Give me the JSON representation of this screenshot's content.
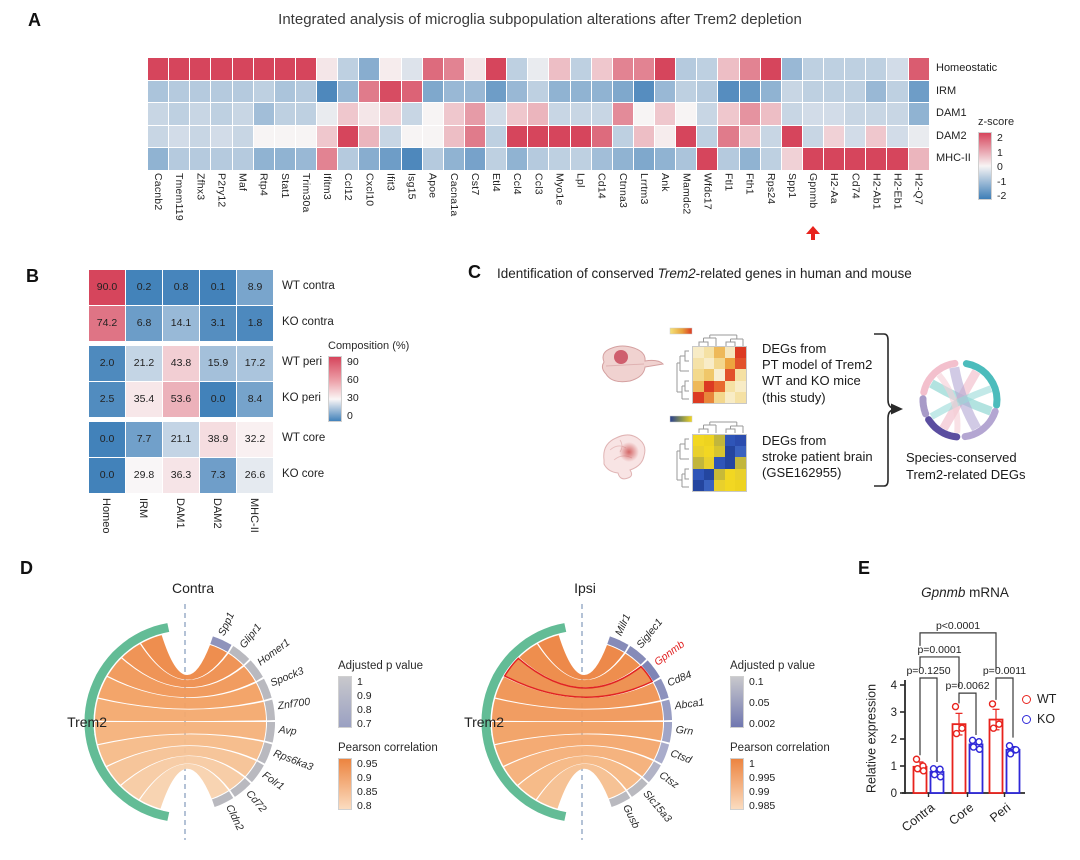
{
  "panelA": {
    "label": "A",
    "title": "Integrated analysis of microglia subpopulation alterations after Trem2 depletion",
    "legend": {
      "title": "z-score",
      "ticks": [
        "2",
        "1",
        "0",
        "-1",
        "-2"
      ]
    },
    "highlight_gene": "Gpnmb"
  },
  "panelB": {
    "label": "B",
    "legend": {
      "title": "Composition (%)",
      "ticks": [
        "90",
        "60",
        "30",
        "0"
      ]
    }
  },
  "panelC": {
    "label": "C",
    "title_pre": "Identification of conserved ",
    "title_italic": "Trem2",
    "title_post": "-related genes in human and mouse",
    "mouse_lines": [
      "DEGs from",
      "PT model of Trem2",
      "WT and KO mice",
      "(this study)"
    ],
    "human_lines": [
      "DEGs from",
      "stroke patient brain",
      "(GSE162955)"
    ],
    "result_lines": [
      "Species-conserved",
      "Trem2-related DEGs"
    ],
    "mouse_heatmap": [
      [
        "#f8ecc6",
        "#f5e1a4",
        "#eeb95a",
        "#f6e7bd",
        "#dc3a22"
      ],
      [
        "#f5e2a8",
        "#f8ecc8",
        "#f3d78d",
        "#eda43f",
        "#e2512b"
      ],
      [
        "#f3d98c",
        "#f0c76a",
        "#f8eed2",
        "#e2512b",
        "#f5e1a4"
      ],
      [
        "#eeb95a",
        "#dc3a22",
        "#e8692f",
        "#f5e1a4",
        "#f8ecc6"
      ],
      [
        "#dc3a22",
        "#e8863a",
        "#f3d78d",
        "#f8ecc6",
        "#f5e1a4"
      ]
    ],
    "human_heatmap": [
      [
        "#f2d722",
        "#eed320",
        "#c2b63c",
        "#2f55b8",
        "#2b4cae"
      ],
      [
        "#e9d02c",
        "#f2d722",
        "#d6c430",
        "#24459f",
        "#3a62c0"
      ],
      [
        "#c2b63c",
        "#e9d02c",
        "#2f55b8",
        "#2446a0",
        "#c2b63c"
      ],
      [
        "#2f55b8",
        "#2446a0",
        "#c8ba38",
        "#f2d722",
        "#e9d02c"
      ],
      [
        "#24459f",
        "#3a62c0",
        "#e9d02c",
        "#f2d722",
        "#eed320"
      ]
    ]
  },
  "panelD": {
    "label": "D",
    "contra": {
      "title": "Contra",
      "hub": "Trem2",
      "p_legend": {
        "title": "Adjusted p value",
        "ticks": [
          "1",
          "0.9",
          "0.8",
          "0.7"
        ],
        "gradient": [
          "#c8c8cc",
          "#9aa0c2"
        ]
      },
      "r_legend": {
        "title": "Pearson correlation",
        "ticks": [
          "0.95",
          "0.9",
          "0.85",
          "0.8"
        ],
        "gradient": [
          "#ec8440",
          "#fbdcc0"
        ]
      }
    },
    "ipsi": {
      "title": "Ipsi",
      "hub": "Trem2",
      "p_legend": {
        "title": "Adjusted p value",
        "ticks": [
          "0.1",
          "0.05",
          "0.002"
        ],
        "gradient": [
          "#c8c8cc",
          "#7077b0"
        ]
      },
      "r_legend": {
        "title": "Pearson correlation",
        "ticks": [
          "1",
          "0.995",
          "0.99",
          "0.985"
        ],
        "gradient": [
          "#ec8440",
          "#fbdcc0"
        ]
      }
    }
  },
  "panelE": {
    "label": "E",
    "title_italic": "Gpnmb",
    "title_rest": " mRNA",
    "ylabel": "Relative expression"
  },
  "chart_data": [
    {
      "id": "panelA_heatmap",
      "type": "heatmap",
      "title": "Integrated analysis of microglia subpopulation alterations after Trem2 depletion",
      "rows": [
        "Homeostatic",
        "IRM",
        "DAM1",
        "DAM2",
        "MHC-II"
      ],
      "columns": [
        "Cacnb2",
        "Tmem119",
        "Zfhx3",
        "P2ry12",
        "Maf",
        "Rtp4",
        "Stat1",
        "Trim30a",
        "Ifitm3",
        "Ccl12",
        "Cxcl10",
        "Ifit3",
        "Isg15",
        "Apoe",
        "Cacna1a",
        "Cst7",
        "Etl4",
        "Ccl4",
        "Ccl3",
        "Myo1e",
        "Lpl",
        "Cd14",
        "Ctnna3",
        "Lrrtm3",
        "Ank",
        "Mamdc2",
        "Wfdc17",
        "Ftl1",
        "Fth1",
        "Rps24",
        "Spp1",
        "Gpnmb",
        "H2-Aa",
        "Cd74",
        "H2-Ab1",
        "H2-Eb1",
        "H2-Q7"
      ],
      "values": [
        [
          2,
          2,
          2,
          2,
          2,
          2,
          2,
          2,
          0.1,
          -0.5,
          -1.1,
          0.05,
          -0.2,
          1.5,
          1.2,
          0.1,
          2,
          -0.5,
          -0.1,
          0.5,
          -0.5,
          0.4,
          1.2,
          1.2,
          2,
          -0.6,
          -0.5,
          0.5,
          1.2,
          2,
          -0.9,
          -0.5,
          -0.5,
          -0.5,
          -0.5,
          -0.3,
          1.7
        ],
        [
          -0.7,
          -0.6,
          -0.6,
          -0.6,
          -0.6,
          -0.5,
          -0.7,
          -0.6,
          -1.8,
          -0.9,
          1.3,
          1.9,
          1.6,
          -1.2,
          -0.9,
          -0.9,
          -1.4,
          -0.9,
          -0.5,
          -1,
          -1,
          -1,
          -1.2,
          -1.7,
          -0.9,
          -0.5,
          -0.6,
          -1.7,
          -1.5,
          -1,
          -0.4,
          -0.5,
          -0.5,
          -0.5,
          -0.9,
          -0.5,
          -1.4
        ],
        [
          -0.4,
          -0.5,
          -0.4,
          -0.5,
          -0.4,
          -0.8,
          -0.5,
          -0.5,
          -0.1,
          0.4,
          0.1,
          0.3,
          -0.4,
          0,
          0.4,
          0.9,
          -0.3,
          0.4,
          0.6,
          -0.4,
          -0.4,
          -0.4,
          1.1,
          0,
          0.4,
          0,
          -0.4,
          0.4,
          1,
          0.5,
          -0.4,
          -0.3,
          -0.3,
          -0.4,
          -0.4,
          -0.4,
          -1
        ],
        [
          -0.4,
          -0.3,
          -0.4,
          -0.3,
          -0.4,
          0,
          0,
          0,
          0.4,
          2,
          0.6,
          -0.4,
          0,
          0,
          0.5,
          1.3,
          -0.5,
          2,
          2,
          2,
          2,
          1.5,
          -0.5,
          0.5,
          0.05,
          2,
          -0.5,
          1.3,
          0.5,
          -0.4,
          2,
          -0.4,
          0.3,
          -0.3,
          0.4,
          -0.3,
          -0.1
        ],
        [
          -1,
          -0.6,
          -0.6,
          -0.6,
          -0.6,
          -1,
          -1,
          -0.9,
          1.2,
          -0.6,
          -1.1,
          -1.4,
          -1.8,
          -0.6,
          -1,
          -1.3,
          -0.5,
          -1,
          -0.6,
          -0.5,
          -0.5,
          -0.8,
          -1,
          -1.2,
          -1,
          -0.7,
          2,
          -0.6,
          -1,
          -0.5,
          0.3,
          2,
          2,
          2,
          2,
          2,
          0.6
        ]
      ],
      "colorbar": {
        "label": "z-score",
        "ticks": [
          2,
          1,
          0,
          -1,
          -2
        ],
        "range": [
          -2,
          2
        ],
        "max_color": "#d6455c",
        "mid_color": "#f7f4f4",
        "min_color": "#3e7eb7"
      },
      "highlight_column": "Gpnmb"
    },
    {
      "id": "panelB_heatmap",
      "type": "heatmap",
      "rows": [
        "WT contra",
        "KO contra",
        "WT peri",
        "KO peri",
        "WT core",
        "KO core"
      ],
      "columns": [
        "Homeo",
        "IRM",
        "DAM1",
        "DAM2",
        "MHC-II"
      ],
      "values": [
        [
          "90.0",
          "0.2",
          "0.8",
          "0.1",
          "8.9"
        ],
        [
          "74.2",
          "6.8",
          "14.1",
          "3.1",
          "1.8"
        ],
        [
          "2.0",
          "21.2",
          "43.8",
          "15.9",
          "17.2"
        ],
        [
          "2.5",
          "35.4",
          "53.6",
          "0.0",
          "8.4"
        ],
        [
          "0.0",
          "7.7",
          "21.1",
          "38.9",
          "32.2"
        ],
        [
          "0.0",
          "29.8",
          "36.3",
          "7.3",
          "26.6"
        ]
      ],
      "colorbar": {
        "label": "Composition (%)",
        "ticks": [
          90,
          60,
          30,
          0
        ],
        "range": [
          0,
          90
        ],
        "white_at": 30
      }
    },
    {
      "id": "panelD_contra",
      "type": "chord",
      "title": "Contra",
      "hub": "Trem2",
      "hub_arc_color": "#63bc96",
      "nodes": [
        {
          "name": "Spp1",
          "segment_color": "#8f93bb",
          "label_color": "#2a2a2a"
        },
        {
          "name": "Glipr1",
          "segment_color": "#b9b9bf",
          "label_color": "#2a2a2a"
        },
        {
          "name": "Homer1",
          "segment_color": "#b9b9bf",
          "label_color": "#2a2a2a"
        },
        {
          "name": "Spock3",
          "segment_color": "#b9b9bf",
          "label_color": "#2a2a2a"
        },
        {
          "name": "Znf700",
          "segment_color": "#b9b9bf",
          "label_color": "#2a2a2a"
        },
        {
          "name": "Avp",
          "segment_color": "#b9b9bf",
          "label_color": "#2a2a2a"
        },
        {
          "name": "Rps6ka3",
          "segment_color": "#b9b9bf",
          "label_color": "#2a2a2a"
        },
        {
          "name": "Folr1",
          "segment_color": "#b9b9bf",
          "label_color": "#2a2a2a"
        },
        {
          "name": "Cd72",
          "segment_color": "#b9b9bf",
          "label_color": "#2a2a2a"
        },
        {
          "name": "Cldn2",
          "segment_color": "#b9b9bf",
          "label_color": "#2a2a2a"
        }
      ],
      "ribbon_colors": [
        "#ed8846",
        "#ee8e4e",
        "#f09757",
        "#f2a062",
        "#f3a96e",
        "#f4b17a",
        "#f5ba88",
        "#f6c295",
        "#f7caa2",
        "#f8d2ae"
      ]
    },
    {
      "id": "panelD_ipsi",
      "type": "chord",
      "title": "Ipsi",
      "hub": "Trem2",
      "hub_arc_color": "#63bc96",
      "nodes": [
        {
          "name": "Milr1",
          "segment_color": "#868bb8",
          "label_color": "#2a2a2a"
        },
        {
          "name": "Siglec1",
          "segment_color": "#868bb8",
          "label_color": "#2a2a2a"
        },
        {
          "name": "Gpnmb",
          "segment_color": "#7f85b6",
          "label_color": "#e02020"
        },
        {
          "name": "Cd84",
          "segment_color": "#8d92bd",
          "label_color": "#2a2a2a"
        },
        {
          "name": "Abca1",
          "segment_color": "#989dc3",
          "label_color": "#2a2a2a"
        },
        {
          "name": "Grn",
          "segment_color": "#a0a5c7",
          "label_color": "#2a2a2a"
        },
        {
          "name": "Ctsd",
          "segment_color": "#a9accb",
          "label_color": "#2a2a2a"
        },
        {
          "name": "Ctsz",
          "segment_color": "#b2b3c6",
          "label_color": "#2a2a2a"
        },
        {
          "name": "Slc15a3",
          "segment_color": "#b9b9bf",
          "label_color": "#2a2a2a"
        },
        {
          "name": "Gusb",
          "segment_color": "#b9b9bf",
          "label_color": "#2a2a2a"
        }
      ],
      "ribbon_colors": [
        "#ec8340",
        "#ed8845",
        "#ee8d4b",
        "#ef9252",
        "#f0985a",
        "#f1a063",
        "#f3a76d",
        "#f4af78",
        "#f5b783",
        "#f6bf8f"
      ],
      "highlight_node": "Gpnmb",
      "highlight_color": "#e01818"
    },
    {
      "id": "panelE_bar",
      "type": "bar",
      "title": "Gpnmb mRNA",
      "ylabel": "Relative expression",
      "ylim": [
        0,
        4
      ],
      "yticks": [
        0,
        1,
        2,
        3,
        4
      ],
      "categories": [
        "Contra",
        "Core",
        "Peri"
      ],
      "series": [
        {
          "name": "WT",
          "color": "#e8231d",
          "values": [
            0.97,
            2.55,
            2.72
          ],
          "errors": [
            0.18,
            0.4,
            0.38
          ],
          "points": [
            [
              1.25,
              1.0,
              0.9,
              0.82
            ],
            [
              3.2,
              2.4,
              2.2
            ],
            [
              3.3,
              2.55,
              2.4
            ]
          ]
        },
        {
          "name": "KO",
          "color": "#2f28d8",
          "values": [
            0.78,
            1.8,
            1.6
          ],
          "errors": [
            0.12,
            0.15,
            0.12
          ],
          "points": [
            [
              0.9,
              0.88,
              0.68,
              0.6
            ],
            [
              1.95,
              1.9,
              1.7,
              1.62
            ],
            [
              1.75,
              1.6,
              1.45
            ]
          ]
        }
      ],
      "significance": [
        {
          "label": "p=0.1250",
          "from": "Contra-WT",
          "to": "Contra-KO",
          "y": 4.26,
          "leg_from": 1.4,
          "leg_to": 1.15
        },
        {
          "label": "p=0.0062",
          "from": "Core-WT",
          "to": "Core-KO",
          "y": 3.7,
          "leg_from": 3.32,
          "leg_to": 2.15
        },
        {
          "label": "p=0.0011",
          "from": "Peri-WT",
          "to": "Peri-KO",
          "y": 4.26,
          "leg_from": 3.45,
          "leg_to": 2.05
        },
        {
          "label": "p=0.0001",
          "from": "Contra-WT",
          "to": "Core-WT",
          "y": 5.04,
          "leg_from": 4.62,
          "leg_to": 3.92
        },
        {
          "label": "p<0.0001",
          "from": "Contra-WT",
          "to": "Peri-WT",
          "y": 5.93,
          "leg_from": 5.45,
          "leg_to": 4.55
        }
      ]
    }
  ]
}
